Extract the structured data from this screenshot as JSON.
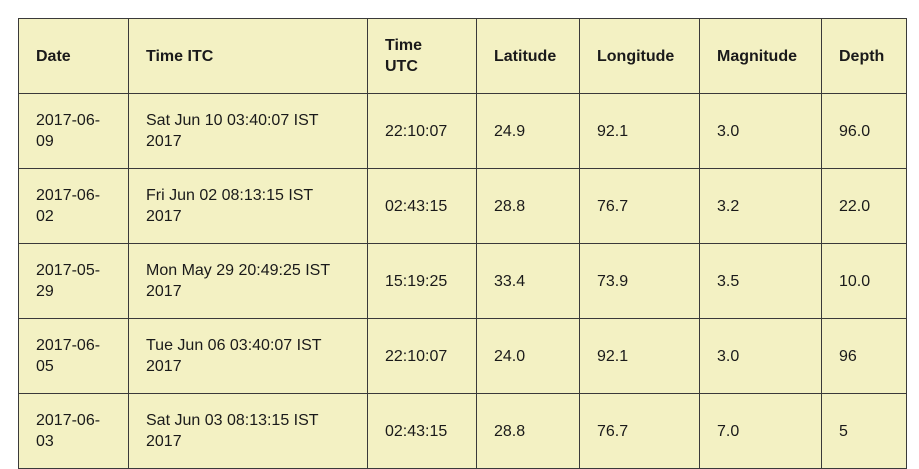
{
  "table": {
    "headers": [
      "Date",
      "Time ITC",
      "Time UTC",
      "Latitude",
      "Longitude",
      "Magnitude",
      "Depth"
    ],
    "rows": [
      [
        "2017-06-09",
        "Sat Jun 10 03:40:07 IST 2017",
        "22:10:07",
        "24.9",
        "92.1",
        "3.0",
        "96.0"
      ],
      [
        "2017-06-02",
        "Fri Jun 02 08:13:15 IST 2017",
        "02:43:15",
        "28.8",
        "76.7",
        "3.2",
        "22.0"
      ],
      [
        "2017-05-29",
        "Mon May 29 20:49:25 IST 2017",
        "15:19:25",
        "33.4",
        "73.9",
        "3.5",
        "10.0"
      ],
      [
        "2017-06-05",
        "Tue Jun 06 03:40:07 IST 2017",
        "22:10:07",
        "24.0",
        "92.1",
        "3.0",
        "96"
      ],
      [
        "2017-06-03",
        "Sat Jun 03 08:13:15 IST 2017",
        "02:43:15",
        "28.8",
        "76.7",
        "7.0",
        "5"
      ]
    ]
  }
}
